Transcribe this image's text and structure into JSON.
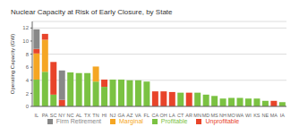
{
  "chart_data": {
    "type": "bar",
    "title": "Nuclear Capacity at Risk of Early Closure, by State",
    "ylabel": "Operating Capacity (GW)",
    "categories": [
      "IL",
      "PA",
      "SC",
      "NY",
      "NC",
      "AL",
      "TX",
      "TN",
      "HI",
      "NJ",
      "GA",
      "AZ",
      "VA",
      "FL",
      "CA",
      "OH",
      "LA",
      "CT",
      "AR",
      "MN",
      "MD",
      "MS",
      "NH",
      "MO",
      "WA",
      "WI",
      "KS",
      "NE",
      "MA",
      "IA"
    ],
    "series": [
      {
        "name": "Profitable",
        "color": "#7bc242",
        "values": [
          4.1,
          5.3,
          1.8,
          0.0,
          5.2,
          5.1,
          5.1,
          3.8,
          3.0,
          4.1,
          4.1,
          4.0,
          4.0,
          3.8,
          0.0,
          0.0,
          0.0,
          2.1,
          0.0,
          2.1,
          1.8,
          1.6,
          1.2,
          1.3,
          1.3,
          1.2,
          1.2,
          0.85,
          0.0,
          0.65
        ]
      },
      {
        "name": "Marginal",
        "color": "#f5a623",
        "values": [
          4.0,
          4.9,
          0.0,
          0.0,
          0.0,
          0.0,
          0.0,
          2.3,
          0.0,
          0.0,
          0.0,
          0.0,
          0.0,
          0.0,
          0.0,
          0.0,
          0.0,
          0.0,
          0.0,
          0.0,
          0.0,
          0.0,
          0.0,
          0.0,
          0.0,
          0.0,
          0.0,
          0.0,
          0.0,
          0.0
        ]
      },
      {
        "name": "Unprofitable",
        "color": "#e8442a",
        "values": [
          0.7,
          0.9,
          5.0,
          1.0,
          0.0,
          0.0,
          0.0,
          0.0,
          1.1,
          0.0,
          0.0,
          0.0,
          0.0,
          0.0,
          2.3,
          2.3,
          2.2,
          0.0,
          2.1,
          0.0,
          0.0,
          0.0,
          0.0,
          0.0,
          0.0,
          0.0,
          0.0,
          0.0,
          0.85,
          0.0
        ]
      },
      {
        "name": "Firm Retirement",
        "color": "#888888",
        "values": [
          3.0,
          0.0,
          0.0,
          4.5,
          0.0,
          0.0,
          0.0,
          0.0,
          0.0,
          0.0,
          0.0,
          0.0,
          0.0,
          0.0,
          0.0,
          0.0,
          0.0,
          0.0,
          0.0,
          0.0,
          0.0,
          0.0,
          0.0,
          0.0,
          0.0,
          0.0,
          0.0,
          0.0,
          0.0,
          0.0
        ]
      }
    ],
    "ylim": [
      0,
      13
    ],
    "yticks": [
      0,
      2,
      4,
      6,
      8,
      10,
      12
    ],
    "grid": true,
    "stacked": true,
    "legend": "bottom"
  }
}
